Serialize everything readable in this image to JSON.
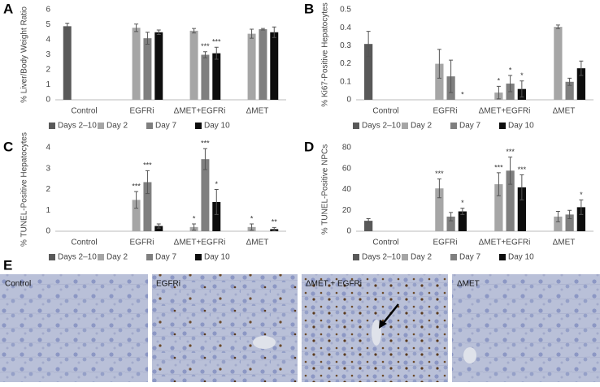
{
  "chart_data": [
    {
      "type": "bar",
      "panel": "A",
      "ylabel": "% Liver/Body Weight Ratio",
      "categories": [
        "Control",
        "EGFRi",
        "ΔMET+EGFRi",
        "ΔMET"
      ],
      "ylim": [
        0,
        6
      ],
      "yticks": [
        0,
        1,
        2,
        3,
        4,
        5,
        6
      ],
      "grid": false,
      "series": [
        {
          "name": "Days 2–10",
          "color": "#595959",
          "values": [
            4.9,
            null,
            null,
            null
          ],
          "errors": [
            0.2,
            null,
            null,
            null
          ],
          "labels": [
            null,
            null,
            null,
            null
          ]
        },
        {
          "name": "Day 2",
          "color": "#a6a6a6",
          "values": [
            null,
            4.8,
            4.6,
            4.4
          ],
          "errors": [
            null,
            0.25,
            0.15,
            0.3
          ],
          "labels": [
            null,
            null,
            null,
            null
          ]
        },
        {
          "name": "Day 7",
          "color": "#7f7f7f",
          "values": [
            null,
            4.1,
            3.0,
            4.7
          ],
          "errors": [
            null,
            0.4,
            0.2,
            0.05
          ],
          "labels": [
            null,
            null,
            "***",
            null
          ]
        },
        {
          "name": "Day 10",
          "color": "#0d0d0d",
          "values": [
            null,
            4.5,
            3.1,
            4.5
          ],
          "errors": [
            null,
            0.15,
            0.4,
            0.35
          ],
          "labels": [
            null,
            null,
            "***",
            null
          ]
        }
      ]
    },
    {
      "type": "bar",
      "panel": "B",
      "ylabel": "% Ki67-Positive Hepatocytes",
      "categories": [
        "Control",
        "EGFRi",
        "ΔMET+EGFRi",
        "ΔMET"
      ],
      "ylim": [
        0,
        0.5
      ],
      "yticks": [
        0,
        0.1,
        0.2,
        0.3,
        0.4,
        0.5
      ],
      "grid": false,
      "series": [
        {
          "name": "Days 2–10",
          "color": "#595959",
          "values": [
            0.31,
            null,
            null,
            null
          ],
          "errors": [
            0.07,
            null,
            null,
            null
          ],
          "labels": [
            null,
            null,
            null,
            null
          ]
        },
        {
          "name": "Day 2",
          "color": "#a6a6a6",
          "values": [
            null,
            0.2,
            0.04,
            0.405
          ],
          "errors": [
            null,
            0.08,
            0.035,
            0.01
          ],
          "labels": [
            null,
            null,
            "*",
            null
          ]
        },
        {
          "name": "Day 7",
          "color": "#7f7f7f",
          "values": [
            null,
            0.13,
            0.09,
            0.1
          ],
          "errors": [
            null,
            0.09,
            0.045,
            0.02
          ],
          "labels": [
            null,
            null,
            "*",
            null
          ]
        },
        {
          "name": "Day 10",
          "color": "#0d0d0d",
          "values": [
            null,
            0,
            0.06,
            0.175
          ],
          "errors": [
            null,
            null,
            0.045,
            0.04
          ],
          "labels": [
            null,
            "*",
            "*",
            null
          ]
        }
      ]
    },
    {
      "type": "bar",
      "panel": "C",
      "ylabel": "% TUNEL-Positive Hepatocytes",
      "categories": [
        "Control",
        "EGFRi",
        "ΔMET+EGFRi",
        "ΔMET"
      ],
      "ylim": [
        0,
        4
      ],
      "yticks": [
        0,
        1,
        2,
        3,
        4
      ],
      "grid": false,
      "series": [
        {
          "name": "Days 2–10",
          "color": "#595959",
          "values": [
            0,
            null,
            null,
            null
          ],
          "errors": [
            null,
            null,
            null,
            null
          ],
          "labels": [
            null,
            null,
            null,
            null
          ]
        },
        {
          "name": "Day 2",
          "color": "#a6a6a6",
          "values": [
            null,
            1.5,
            0.2,
            0.2
          ],
          "errors": [
            null,
            0.4,
            0.15,
            0.15
          ],
          "labels": [
            null,
            "***",
            "*",
            "*"
          ]
        },
        {
          "name": "Day 7",
          "color": "#7f7f7f",
          "values": [
            null,
            2.35,
            3.45,
            0
          ],
          "errors": [
            null,
            0.55,
            0.5,
            null
          ],
          "labels": [
            null,
            "***",
            "***",
            null
          ]
        },
        {
          "name": "Day 10",
          "color": "#0d0d0d",
          "values": [
            null,
            0.25,
            1.4,
            0.1
          ],
          "errors": [
            null,
            0.1,
            0.6,
            0.08
          ],
          "labels": [
            null,
            null,
            "*",
            "**"
          ]
        }
      ]
    },
    {
      "type": "bar",
      "panel": "D",
      "ylabel": "% TUNEL-Positive NPCs",
      "categories": [
        "Control",
        "EGFRi",
        "ΔMET+EGFRi",
        "ΔMET"
      ],
      "ylim": [
        0,
        80
      ],
      "yticks": [
        0,
        20,
        40,
        60,
        80
      ],
      "grid": false,
      "series": [
        {
          "name": "Days 2–10",
          "color": "#595959",
          "values": [
            10,
            null,
            null,
            null
          ],
          "errors": [
            2,
            null,
            null,
            null
          ],
          "labels": [
            null,
            null,
            null,
            null
          ]
        },
        {
          "name": "Day 2",
          "color": "#a6a6a6",
          "values": [
            null,
            41,
            45,
            14
          ],
          "errors": [
            null,
            9,
            11,
            5
          ],
          "labels": [
            null,
            "***",
            "***",
            null
          ]
        },
        {
          "name": "Day 7",
          "color": "#7f7f7f",
          "values": [
            null,
            14,
            58,
            16
          ],
          "errors": [
            null,
            4,
            13,
            4
          ],
          "labels": [
            null,
            null,
            "***",
            null
          ]
        },
        {
          "name": "Day 10",
          "color": "#0d0d0d",
          "values": [
            null,
            19,
            42,
            23
          ],
          "errors": [
            null,
            3,
            12,
            7
          ],
          "labels": [
            null,
            "*",
            "***",
            "*"
          ]
        }
      ]
    }
  ],
  "panel_e": {
    "letter": "E",
    "images": [
      "Control",
      "EGFRi",
      "ΔMET + EGFRi",
      "ΔMET"
    ]
  }
}
